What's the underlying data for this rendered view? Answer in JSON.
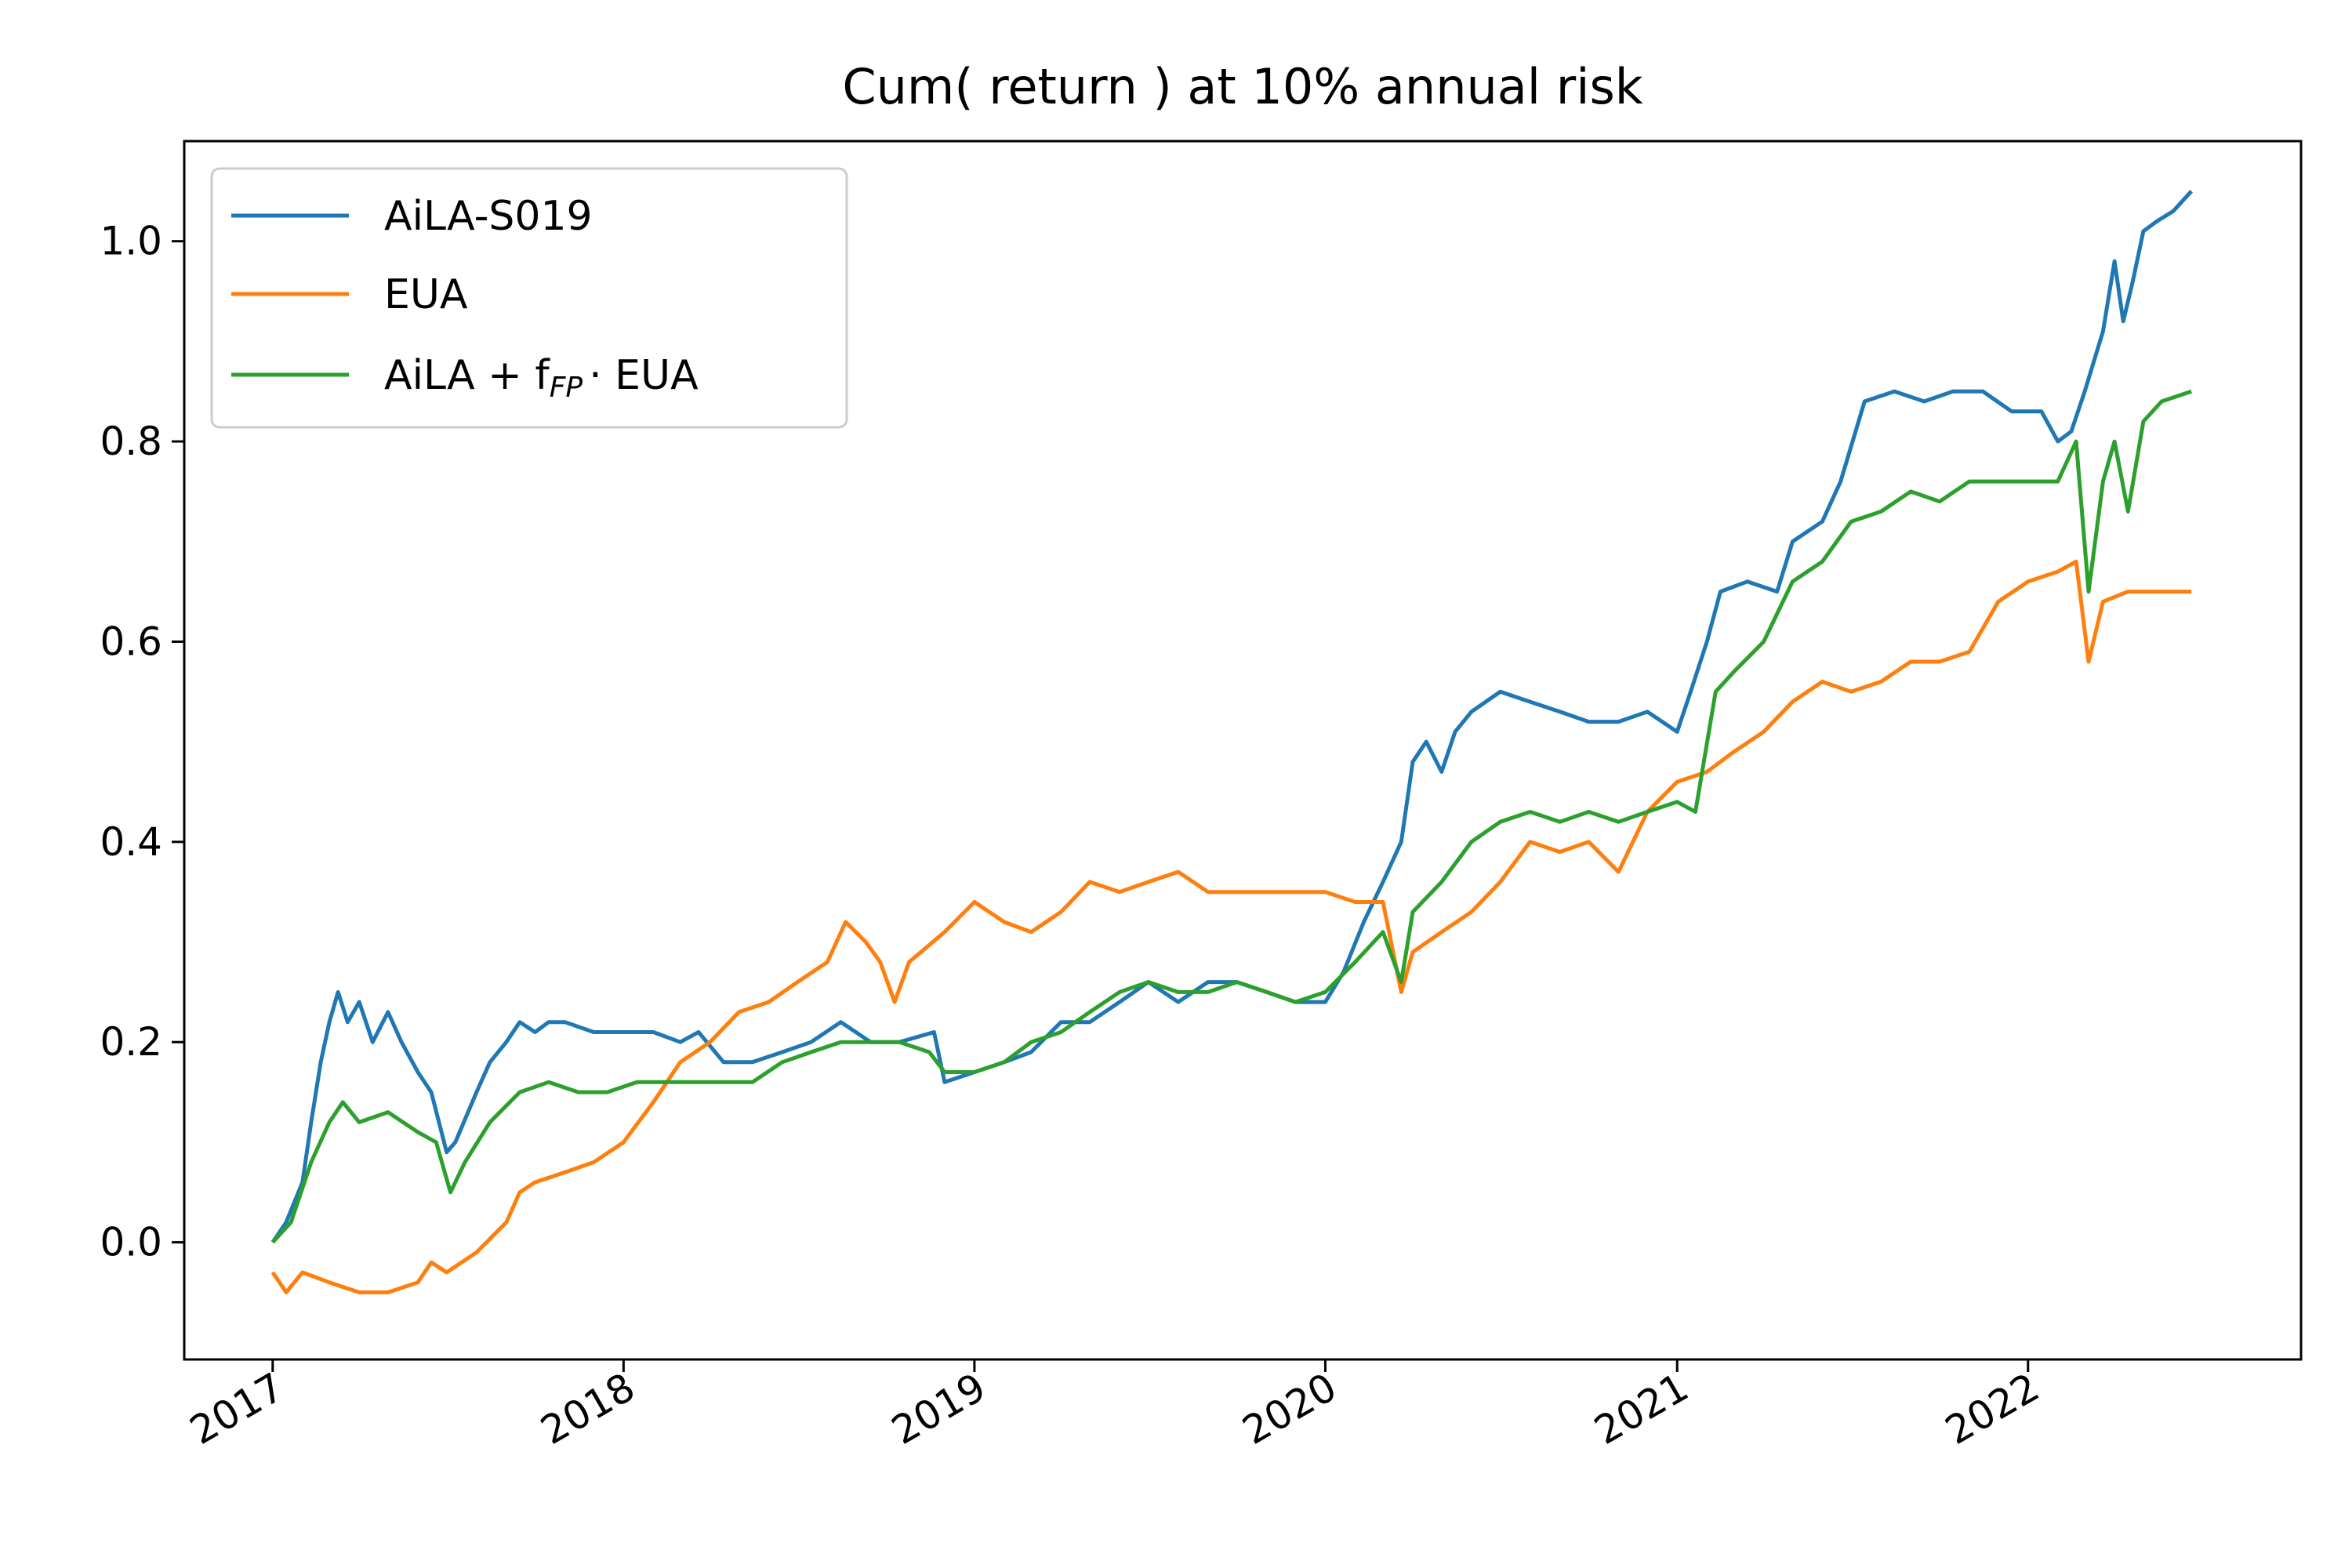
{
  "chart_data": {
    "type": "line",
    "title": "Cum( return ) at 10% annual risk",
    "xlabel": "",
    "ylabel": "",
    "x_type": "date",
    "xlim": [
      "2016-10-01",
      "2022-10-12"
    ],
    "ylim": [
      -0.117,
      1.1
    ],
    "x_ticks": [
      "2017",
      "2018",
      "2019",
      "2020",
      "2021",
      "2022"
    ],
    "y_ticks": [
      "0.0",
      "0.2",
      "0.4",
      "0.6",
      "0.8",
      "1.0"
    ],
    "y_tick_values": [
      0.0,
      0.2,
      0.4,
      0.6,
      0.8,
      1.0
    ],
    "grid": false,
    "legend_position": "top-left",
    "legend": {
      "entry_1": "AiLA-S019",
      "entry_2": "EUA",
      "entry_3_main": "AiLA + f",
      "entry_3_sub": "FP",
      "entry_3_tail": "· EUA"
    },
    "series": [
      {
        "name": "AiLA-S019",
        "color": "#1f77b4",
        "points": [
          [
            "2017-01-01",
            0.0
          ],
          [
            "2017-01-15",
            0.02
          ],
          [
            "2017-02-01",
            0.06
          ],
          [
            "2017-02-10",
            0.12
          ],
          [
            "2017-02-20",
            0.18
          ],
          [
            "2017-03-01",
            0.22
          ],
          [
            "2017-03-10",
            0.25
          ],
          [
            "2017-03-20",
            0.22
          ],
          [
            "2017-04-01",
            0.24
          ],
          [
            "2017-04-15",
            0.2
          ],
          [
            "2017-05-01",
            0.23
          ],
          [
            "2017-05-15",
            0.2
          ],
          [
            "2017-06-01",
            0.17
          ],
          [
            "2017-06-15",
            0.15
          ],
          [
            "2017-07-01",
            0.09
          ],
          [
            "2017-07-10",
            0.1
          ],
          [
            "2017-08-01",
            0.15
          ],
          [
            "2017-08-15",
            0.18
          ],
          [
            "2017-09-01",
            0.2
          ],
          [
            "2017-09-15",
            0.22
          ],
          [
            "2017-10-01",
            0.21
          ],
          [
            "2017-10-15",
            0.22
          ],
          [
            "2017-11-01",
            0.22
          ],
          [
            "2017-12-01",
            0.21
          ],
          [
            "2018-01-01",
            0.21
          ],
          [
            "2018-02-01",
            0.21
          ],
          [
            "2018-03-01",
            0.2
          ],
          [
            "2018-03-20",
            0.21
          ],
          [
            "2018-04-15",
            0.18
          ],
          [
            "2018-05-15",
            0.18
          ],
          [
            "2018-06-15",
            0.19
          ],
          [
            "2018-07-15",
            0.2
          ],
          [
            "2018-08-15",
            0.22
          ],
          [
            "2018-09-15",
            0.2
          ],
          [
            "2018-10-15",
            0.2
          ],
          [
            "2018-11-20",
            0.21
          ],
          [
            "2018-12-01",
            0.16
          ],
          [
            "2019-01-01",
            0.17
          ],
          [
            "2019-02-01",
            0.18
          ],
          [
            "2019-03-01",
            0.19
          ],
          [
            "2019-04-01",
            0.22
          ],
          [
            "2019-05-01",
            0.22
          ],
          [
            "2019-06-01",
            0.24
          ],
          [
            "2019-07-01",
            0.26
          ],
          [
            "2019-08-01",
            0.24
          ],
          [
            "2019-09-01",
            0.26
          ],
          [
            "2019-10-01",
            0.26
          ],
          [
            "2019-11-01",
            0.25
          ],
          [
            "2019-12-01",
            0.24
          ],
          [
            "2020-01-01",
            0.24
          ],
          [
            "2020-01-20",
            0.27
          ],
          [
            "2020-02-10",
            0.32
          ],
          [
            "2020-03-01",
            0.36
          ],
          [
            "2020-03-20",
            0.4
          ],
          [
            "2020-04-01",
            0.48
          ],
          [
            "2020-04-15",
            0.5
          ],
          [
            "2020-05-01",
            0.47
          ],
          [
            "2020-05-15",
            0.51
          ],
          [
            "2020-06-01",
            0.53
          ],
          [
            "2020-07-01",
            0.55
          ],
          [
            "2020-08-01",
            0.54
          ],
          [
            "2020-09-01",
            0.53
          ],
          [
            "2020-10-01",
            0.52
          ],
          [
            "2020-11-01",
            0.52
          ],
          [
            "2020-12-01",
            0.53
          ],
          [
            "2021-01-01",
            0.51
          ],
          [
            "2021-01-15",
            0.55
          ],
          [
            "2021-02-01",
            0.6
          ],
          [
            "2021-02-15",
            0.65
          ],
          [
            "2021-03-15",
            0.66
          ],
          [
            "2021-04-15",
            0.65
          ],
          [
            "2021-05-01",
            0.7
          ],
          [
            "2021-06-01",
            0.72
          ],
          [
            "2021-06-20",
            0.76
          ],
          [
            "2021-07-15",
            0.84
          ],
          [
            "2021-08-15",
            0.85
          ],
          [
            "2021-09-15",
            0.84
          ],
          [
            "2021-10-15",
            0.85
          ],
          [
            "2021-11-15",
            0.85
          ],
          [
            "2021-12-15",
            0.83
          ],
          [
            "2022-01-15",
            0.83
          ],
          [
            "2022-02-01",
            0.8
          ],
          [
            "2022-02-15",
            0.81
          ],
          [
            "2022-03-01",
            0.85
          ],
          [
            "2022-03-20",
            0.91
          ],
          [
            "2022-04-01",
            0.98
          ],
          [
            "2022-04-10",
            0.92
          ],
          [
            "2022-04-20",
            0.96
          ],
          [
            "2022-05-01",
            1.01
          ],
          [
            "2022-05-15",
            1.02
          ],
          [
            "2022-06-01",
            1.03
          ],
          [
            "2022-06-20",
            1.05
          ]
        ]
      },
      {
        "name": "EUA",
        "color": "#ff7f0e",
        "points": [
          [
            "2017-01-01",
            -0.03
          ],
          [
            "2017-01-15",
            -0.05
          ],
          [
            "2017-02-01",
            -0.03
          ],
          [
            "2017-03-01",
            -0.04
          ],
          [
            "2017-04-01",
            -0.05
          ],
          [
            "2017-05-01",
            -0.05
          ],
          [
            "2017-06-01",
            -0.04
          ],
          [
            "2017-06-15",
            -0.02
          ],
          [
            "2017-07-01",
            -0.03
          ],
          [
            "2017-08-01",
            -0.01
          ],
          [
            "2017-09-01",
            0.02
          ],
          [
            "2017-09-15",
            0.05
          ],
          [
            "2017-10-01",
            0.06
          ],
          [
            "2017-11-01",
            0.07
          ],
          [
            "2017-12-01",
            0.08
          ],
          [
            "2018-01-01",
            0.1
          ],
          [
            "2018-02-01",
            0.14
          ],
          [
            "2018-03-01",
            0.18
          ],
          [
            "2018-04-01",
            0.2
          ],
          [
            "2018-05-01",
            0.23
          ],
          [
            "2018-06-01",
            0.24
          ],
          [
            "2018-07-01",
            0.26
          ],
          [
            "2018-08-01",
            0.28
          ],
          [
            "2018-08-20",
            0.32
          ],
          [
            "2018-09-10",
            0.3
          ],
          [
            "2018-09-25",
            0.28
          ],
          [
            "2018-10-10",
            0.24
          ],
          [
            "2018-10-25",
            0.28
          ],
          [
            "2018-12-01",
            0.31
          ],
          [
            "2019-01-01",
            0.34
          ],
          [
            "2019-02-01",
            0.32
          ],
          [
            "2019-03-01",
            0.31
          ],
          [
            "2019-04-01",
            0.33
          ],
          [
            "2019-05-01",
            0.36
          ],
          [
            "2019-06-01",
            0.35
          ],
          [
            "2019-07-01",
            0.36
          ],
          [
            "2019-08-01",
            0.37
          ],
          [
            "2019-09-01",
            0.35
          ],
          [
            "2019-10-01",
            0.35
          ],
          [
            "2019-11-01",
            0.35
          ],
          [
            "2019-12-01",
            0.35
          ],
          [
            "2020-01-01",
            0.35
          ],
          [
            "2020-02-01",
            0.34
          ],
          [
            "2020-03-01",
            0.34
          ],
          [
            "2020-03-20",
            0.25
          ],
          [
            "2020-04-01",
            0.29
          ],
          [
            "2020-05-01",
            0.31
          ],
          [
            "2020-06-01",
            0.33
          ],
          [
            "2020-07-01",
            0.36
          ],
          [
            "2020-08-01",
            0.4
          ],
          [
            "2020-09-01",
            0.39
          ],
          [
            "2020-10-01",
            0.4
          ],
          [
            "2020-11-01",
            0.37
          ],
          [
            "2020-12-01",
            0.43
          ],
          [
            "2021-01-01",
            0.46
          ],
          [
            "2021-02-01",
            0.47
          ],
          [
            "2021-03-01",
            0.49
          ],
          [
            "2021-04-01",
            0.51
          ],
          [
            "2021-05-01",
            0.54
          ],
          [
            "2021-06-01",
            0.56
          ],
          [
            "2021-07-01",
            0.55
          ],
          [
            "2021-08-01",
            0.56
          ],
          [
            "2021-09-01",
            0.58
          ],
          [
            "2021-10-01",
            0.58
          ],
          [
            "2021-11-01",
            0.59
          ],
          [
            "2021-12-01",
            0.64
          ],
          [
            "2022-01-01",
            0.66
          ],
          [
            "2022-02-01",
            0.67
          ],
          [
            "2022-02-20",
            0.68
          ],
          [
            "2022-03-05",
            0.58
          ],
          [
            "2022-03-20",
            0.64
          ],
          [
            "2022-04-15",
            0.65
          ],
          [
            "2022-05-15",
            0.65
          ],
          [
            "2022-06-20",
            0.65
          ]
        ]
      },
      {
        "name": "AiLA + fFP· EUA",
        "color": "#2ca02c",
        "points": [
          [
            "2017-01-01",
            0.0
          ],
          [
            "2017-01-20",
            0.02
          ],
          [
            "2017-02-10",
            0.08
          ],
          [
            "2017-03-01",
            0.12
          ],
          [
            "2017-03-15",
            0.14
          ],
          [
            "2017-04-01",
            0.12
          ],
          [
            "2017-05-01",
            0.13
          ],
          [
            "2017-06-01",
            0.11
          ],
          [
            "2017-06-20",
            0.1
          ],
          [
            "2017-07-05",
            0.05
          ],
          [
            "2017-07-20",
            0.08
          ],
          [
            "2017-08-15",
            0.12
          ],
          [
            "2017-09-15",
            0.15
          ],
          [
            "2017-10-15",
            0.16
          ],
          [
            "2017-11-15",
            0.15
          ],
          [
            "2017-12-15",
            0.15
          ],
          [
            "2018-01-15",
            0.16
          ],
          [
            "2018-02-15",
            0.16
          ],
          [
            "2018-03-15",
            0.16
          ],
          [
            "2018-04-15",
            0.16
          ],
          [
            "2018-05-15",
            0.16
          ],
          [
            "2018-06-15",
            0.18
          ],
          [
            "2018-07-15",
            0.19
          ],
          [
            "2018-08-15",
            0.2
          ],
          [
            "2018-09-15",
            0.2
          ],
          [
            "2018-10-15",
            0.2
          ],
          [
            "2018-11-15",
            0.19
          ],
          [
            "2018-12-01",
            0.17
          ],
          [
            "2019-01-01",
            0.17
          ],
          [
            "2019-02-01",
            0.18
          ],
          [
            "2019-03-01",
            0.2
          ],
          [
            "2019-04-01",
            0.21
          ],
          [
            "2019-05-01",
            0.23
          ],
          [
            "2019-06-01",
            0.25
          ],
          [
            "2019-07-01",
            0.26
          ],
          [
            "2019-08-01",
            0.25
          ],
          [
            "2019-09-01",
            0.25
          ],
          [
            "2019-10-01",
            0.26
          ],
          [
            "2019-11-01",
            0.25
          ],
          [
            "2019-12-01",
            0.24
          ],
          [
            "2020-01-01",
            0.25
          ],
          [
            "2020-02-01",
            0.28
          ],
          [
            "2020-03-01",
            0.31
          ],
          [
            "2020-03-20",
            0.26
          ],
          [
            "2020-04-01",
            0.33
          ],
          [
            "2020-05-01",
            0.36
          ],
          [
            "2020-06-01",
            0.4
          ],
          [
            "2020-07-01",
            0.42
          ],
          [
            "2020-08-01",
            0.43
          ],
          [
            "2020-09-01",
            0.42
          ],
          [
            "2020-10-01",
            0.43
          ],
          [
            "2020-11-01",
            0.42
          ],
          [
            "2020-12-01",
            0.43
          ],
          [
            "2021-01-01",
            0.44
          ],
          [
            "2021-01-20",
            0.43
          ],
          [
            "2021-02-10",
            0.55
          ],
          [
            "2021-03-01",
            0.57
          ],
          [
            "2021-04-01",
            0.6
          ],
          [
            "2021-05-01",
            0.66
          ],
          [
            "2021-06-01",
            0.68
          ],
          [
            "2021-07-01",
            0.72
          ],
          [
            "2021-08-01",
            0.73
          ],
          [
            "2021-09-01",
            0.75
          ],
          [
            "2021-10-01",
            0.74
          ],
          [
            "2021-11-01",
            0.76
          ],
          [
            "2021-12-01",
            0.76
          ],
          [
            "2022-01-01",
            0.76
          ],
          [
            "2022-02-01",
            0.76
          ],
          [
            "2022-02-20",
            0.8
          ],
          [
            "2022-03-05",
            0.65
          ],
          [
            "2022-03-20",
            0.76
          ],
          [
            "2022-04-01",
            0.8
          ],
          [
            "2022-04-15",
            0.73
          ],
          [
            "2022-05-01",
            0.82
          ],
          [
            "2022-05-20",
            0.84
          ],
          [
            "2022-06-20",
            0.85
          ]
        ]
      }
    ]
  }
}
